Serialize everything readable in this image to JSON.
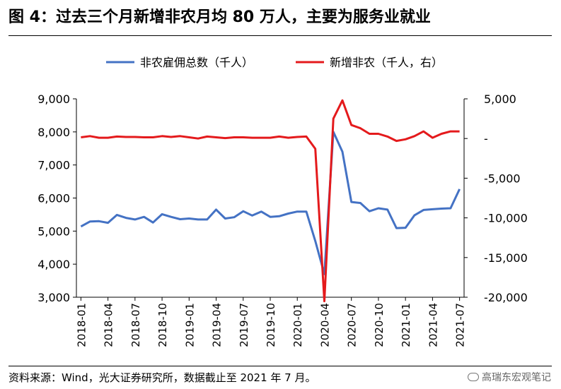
{
  "header": {
    "title": "图 4：过去三个月新增非农月均 80 万人，主要为服务业就业"
  },
  "footer": {
    "source": "资料来源：Wind，光大证券研究所，数据截止至 2021 年 7 月。",
    "watermark": "高瑞东宏观笔记"
  },
  "chart_data": {
    "type": "line",
    "x": [
      "2018-01",
      "2018-02",
      "2018-03",
      "2018-04",
      "2018-05",
      "2018-06",
      "2018-07",
      "2018-08",
      "2018-09",
      "2018-10",
      "2018-11",
      "2018-12",
      "2019-01",
      "2019-02",
      "2019-03",
      "2019-04",
      "2019-05",
      "2019-06",
      "2019-07",
      "2019-08",
      "2019-09",
      "2019-10",
      "2019-11",
      "2019-12",
      "2020-01",
      "2020-02",
      "2020-03",
      "2020-04",
      "2020-05",
      "2020-06",
      "2020-07",
      "2020-08",
      "2020-09",
      "2020-10",
      "2020-11",
      "2020-12",
      "2021-01",
      "2021-02",
      "2021-03",
      "2021-04",
      "2021-05",
      "2021-06",
      "2021-07"
    ],
    "x_tick_labels": [
      "2018-01",
      "2018-04",
      "2018-07",
      "2018-10",
      "2019-01",
      "2019-04",
      "2019-07",
      "2019-10",
      "2020-01",
      "2020-04",
      "2020-07",
      "2020-10",
      "2021-01",
      "2021-04",
      "2021-07"
    ],
    "series": [
      {
        "name": "非农雇佣总数（千人）",
        "axis": "left",
        "color": "#4472C4",
        "values": [
          5140,
          5290,
          5300,
          5250,
          5490,
          5400,
          5350,
          5430,
          5260,
          5510,
          5430,
          5360,
          5380,
          5350,
          5350,
          5650,
          5380,
          5420,
          5600,
          5470,
          5590,
          5430,
          5450,
          5530,
          5590,
          5590,
          4700,
          3700,
          8000,
          7400,
          5880,
          5850,
          5600,
          5690,
          5650,
          5090,
          5100,
          5480,
          5640,
          5660,
          5680,
          5690,
          6270
        ]
      },
      {
        "name": "新增非农（千人，右）",
        "axis": "right",
        "color": "#E41A1C",
        "values": [
          150,
          300,
          100,
          100,
          250,
          200,
          200,
          150,
          150,
          300,
          200,
          300,
          150,
          0,
          250,
          150,
          50,
          150,
          150,
          100,
          100,
          100,
          250,
          100,
          200,
          250,
          -1300,
          -20500,
          2500,
          4800,
          1700,
          1300,
          600,
          600,
          250,
          -300,
          -100,
          300,
          900,
          100,
          600,
          900,
          900
        ]
      }
    ],
    "left_axis": {
      "ylim": [
        3000,
        9000
      ],
      "ticks": [
        "3,000",
        "4,000",
        "5,000",
        "6,000",
        "7,000",
        "8,000",
        "9,000"
      ]
    },
    "right_axis": {
      "ylim": [
        -20000,
        5000
      ],
      "ticks": [
        "5,000",
        "-",
        "-5,000",
        "-10,000",
        "-15,000",
        "-20,000"
      ]
    },
    "legend": {
      "position": "top",
      "entries": [
        "非农雇佣总数（千人）",
        "新增非农（千人，右）"
      ]
    }
  }
}
